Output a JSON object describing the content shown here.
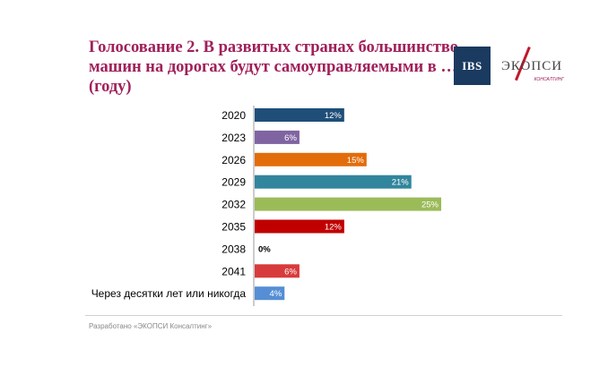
{
  "title_lines": [
    "Голосование 2. В развитых странах большинство",
    "машин на дорогах будут самоуправляемыми в …",
    "(году)"
  ],
  "logos": {
    "ibs": "IBS",
    "ekopsi": "ЭКОПСИ",
    "ekopsi_sub": "КОНСАЛТИНГ"
  },
  "footer": "Разработано «ЭКОПСИ Консалтинг»",
  "chart_data": {
    "type": "bar",
    "orientation": "horizontal",
    "categories": [
      "2020",
      "2023",
      "2026",
      "2029",
      "2032",
      "2035",
      "2038",
      "2041",
      "Через десятки лет или никогда"
    ],
    "values": [
      12,
      6,
      15,
      21,
      25,
      12,
      0,
      6,
      4
    ],
    "value_labels": [
      "12%",
      "6%",
      "15%",
      "21%",
      "25%",
      "12%",
      "0%",
      "6%",
      "4%"
    ],
    "colors": [
      "#1f4e79",
      "#8064a2",
      "#e36c0a",
      "#31859c",
      "#9bbb59",
      "#c00000",
      "#000000",
      "#d83b3b",
      "#558ed5"
    ],
    "xlim": [
      0,
      25
    ],
    "grid": false,
    "legend": "none"
  }
}
